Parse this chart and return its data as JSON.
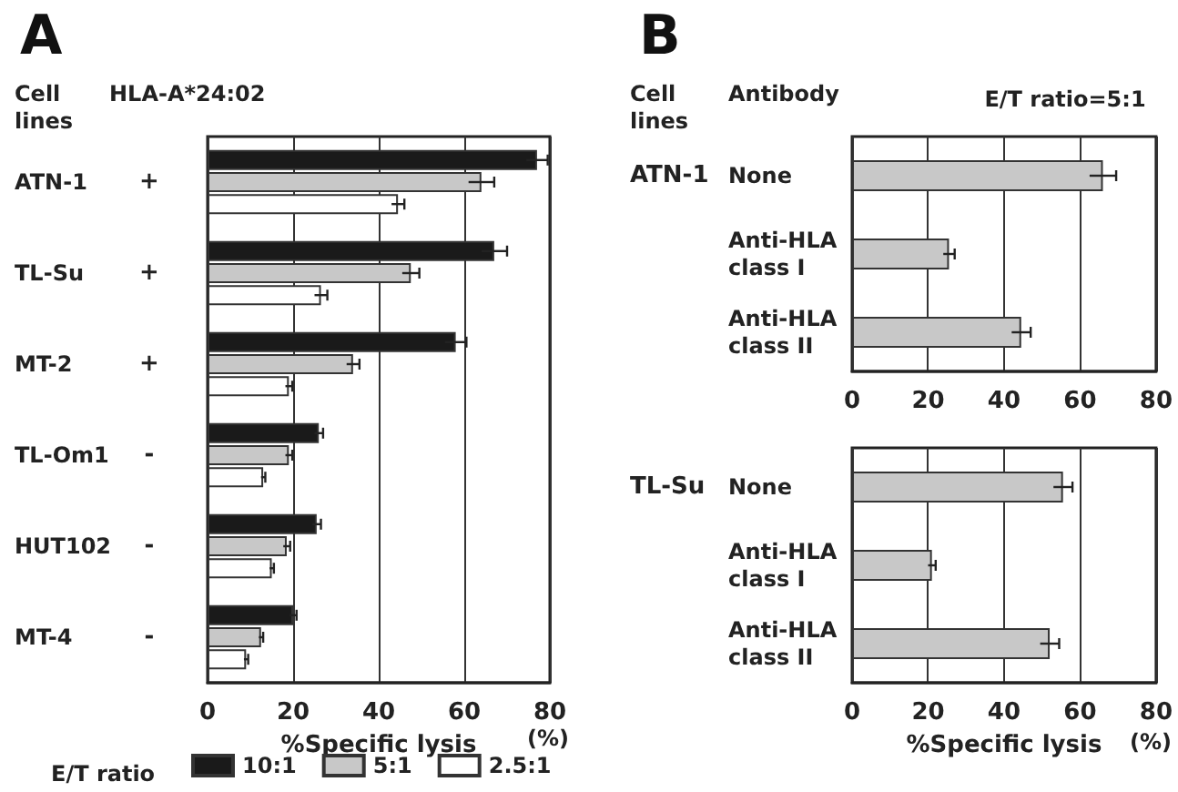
{
  "chart_data": [
    {
      "type": "bar",
      "orientation": "horizontal",
      "title": "A",
      "xlabel": "%Specific lysis",
      "legend_title": "E/T ratio",
      "legend": "bottom",
      "grid": "x",
      "xlim": [
        0,
        80
      ],
      "xticks": [
        0,
        20,
        40,
        60,
        80
      ],
      "categories": [
        "ATN-1",
        "TL-Su",
        "MT-2",
        "TL-Om1",
        "HUT102",
        "MT-4"
      ],
      "series": [
        {
          "name": "10:1",
          "color": "#1a1a1a",
          "values": [
            77,
            67,
            58,
            26,
            25.5,
            20
          ],
          "errors": [
            2.5,
            3,
            2.5,
            1,
            1,
            0.8
          ]
        },
        {
          "name": "5:1",
          "color": "#c8c8c8",
          "values": [
            64,
            47.5,
            34,
            19,
            18.5,
            12.5
          ],
          "errors": [
            3,
            2,
            1.5,
            0.8,
            0.8,
            0.5
          ]
        },
        {
          "name": "2.5:1",
          "color": "#ffffff",
          "values": [
            44.5,
            26.5,
            19,
            13,
            15,
            9
          ],
          "errors": [
            1.5,
            1.5,
            0.8,
            0.5,
            0.5,
            0.5
          ]
        }
      ],
      "annotations": [
        "Cell lines",
        "HLA-A*24:02",
        "(%)",
        "+",
        "+",
        "+",
        "-",
        "-",
        "-"
      ]
    },
    {
      "type": "bar",
      "orientation": "horizontal",
      "title": "B",
      "grid": "x",
      "xlim": [
        0,
        80
      ],
      "xticks": [
        0,
        20,
        40,
        60,
        80
      ],
      "categories": [
        "None",
        "Anti-HLA class I",
        "Anti-HLA class II"
      ],
      "series": [
        {
          "color": "#c8c8c8",
          "values": [
            66,
            25.5,
            44.5
          ],
          "errors": [
            3.5,
            1.5,
            2.5
          ]
        }
      ],
      "annotations": [
        "Cell lines",
        "Antibody",
        "E/T ratio=5:1",
        "ATN-1"
      ]
    },
    {
      "type": "bar",
      "orientation": "horizontal",
      "xlabel": "%Specific lysis",
      "grid": "x",
      "xlim": [
        0,
        80
      ],
      "xticks": [
        0,
        20,
        40,
        60,
        80
      ],
      "categories": [
        "None",
        "Anti-HLA class I",
        "Anti-HLA class II"
      ],
      "series": [
        {
          "color": "#c8c8c8",
          "values": [
            55.5,
            21,
            52
          ],
          "errors": [
            2.5,
            1,
            2.5
          ]
        }
      ],
      "annotations": [
        "(%)",
        "TL-Su"
      ]
    }
  ]
}
